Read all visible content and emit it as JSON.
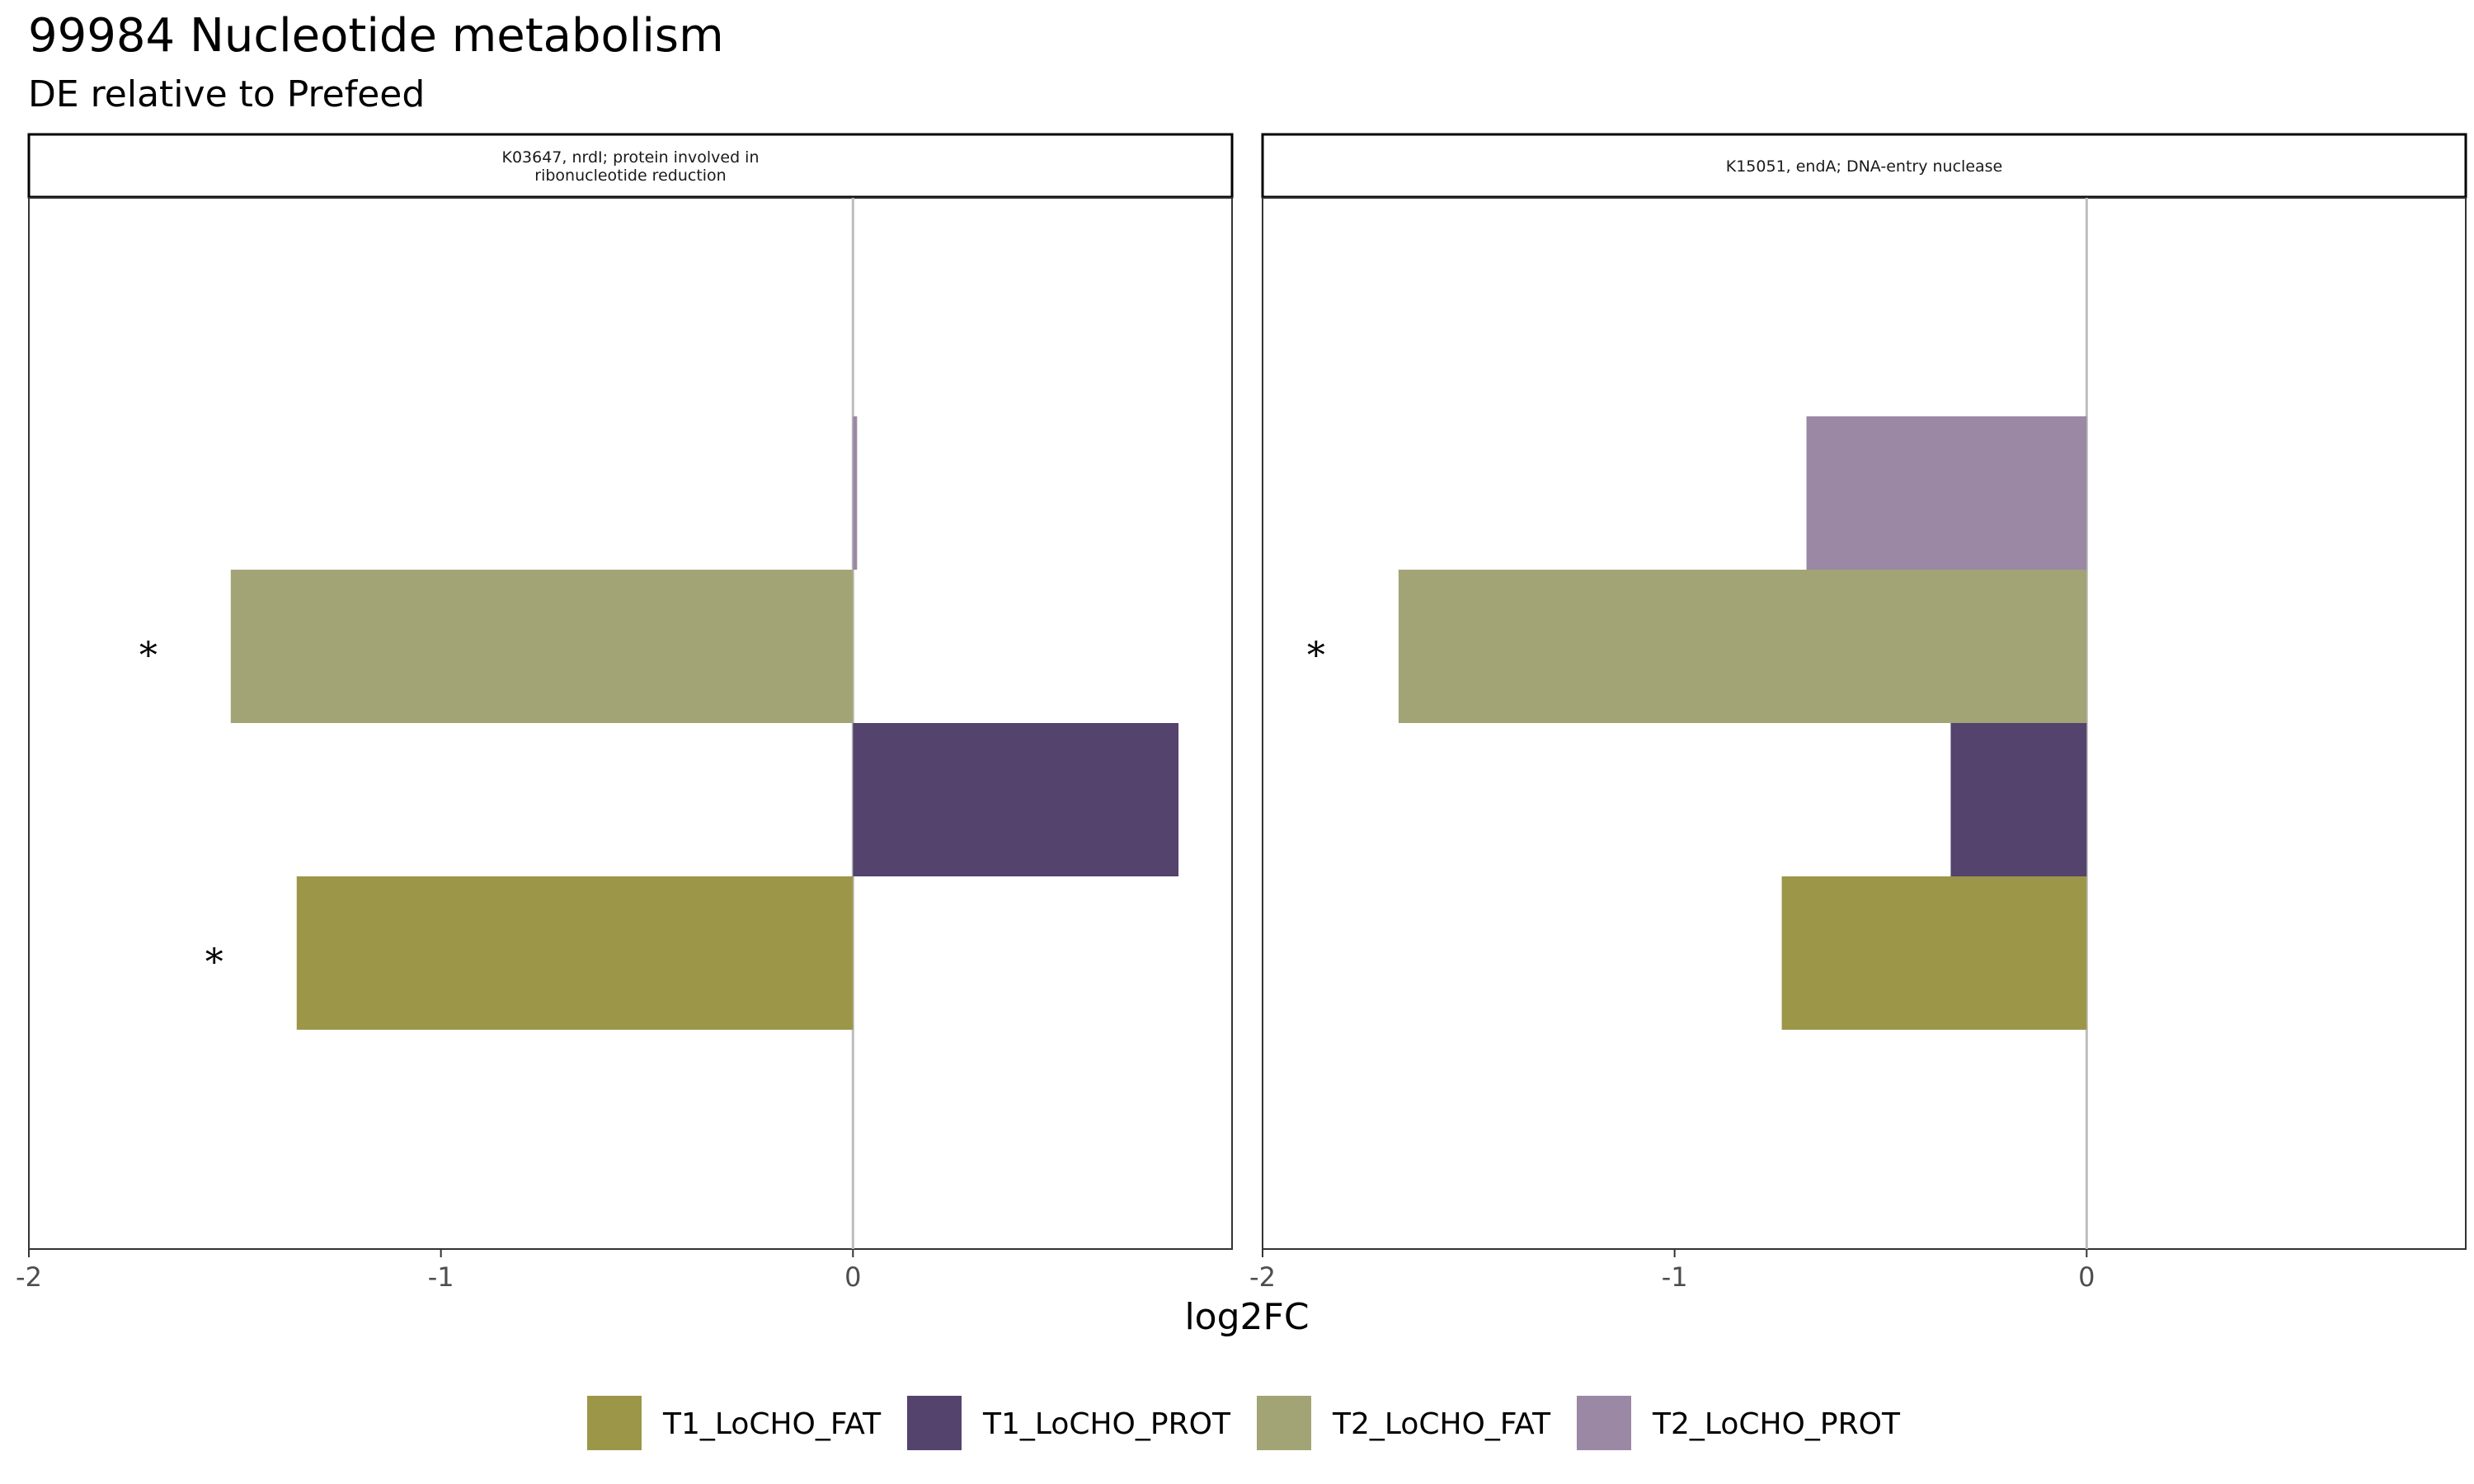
{
  "title": "99984 Nucleotide metabolism",
  "subtitle": "DE relative to Prefeed",
  "chart_data": {
    "type": "bar",
    "orientation": "horizontal",
    "xlabel": "log2FC",
    "xlim": [
      -2,
      0.92
    ],
    "xticks": [
      -2,
      -1,
      0
    ],
    "tick_labels": [
      "-2",
      "-1",
      "0"
    ],
    "zero_line": true,
    "grid": false,
    "legend_position": "bottom",
    "categories": [
      "T1_LoCHO_FAT",
      "T1_LoCHO_PROT",
      "T2_LoCHO_FAT",
      "T2_LoCHO_PROT"
    ],
    "colors": {
      "T1_LoCHO_FAT": "#9c9648",
      "T1_LoCHO_PROT": "#53436d",
      "T2_LoCHO_FAT": "#a2a476",
      "T2_LoCHO_PROT": "#9a88a4"
    },
    "panels": [
      {
        "label_lines": [
          "K03647, nrdI; protein involved in",
          "ribonucleotide reduction"
        ],
        "series": [
          {
            "name": "T1_LoCHO_FAT",
            "value": -1.35,
            "significant": true
          },
          {
            "name": "T1_LoCHO_PROT",
            "value": 0.79,
            "significant": false
          },
          {
            "name": "T2_LoCHO_FAT",
            "value": -1.51,
            "significant": true
          },
          {
            "name": "T2_LoCHO_PROT",
            "value": 0.01,
            "significant": false
          }
        ]
      },
      {
        "label_lines": [
          "K15051, endA; DNA-entry nuclease"
        ],
        "series": [
          {
            "name": "T1_LoCHO_FAT",
            "value": -0.74,
            "significant": false
          },
          {
            "name": "T1_LoCHO_PROT",
            "value": -0.33,
            "significant": false
          },
          {
            "name": "T2_LoCHO_FAT",
            "value": -1.67,
            "significant": true
          },
          {
            "name": "T2_LoCHO_PROT",
            "value": -0.68,
            "significant": false
          }
        ]
      }
    ],
    "significance_marker": "*"
  }
}
